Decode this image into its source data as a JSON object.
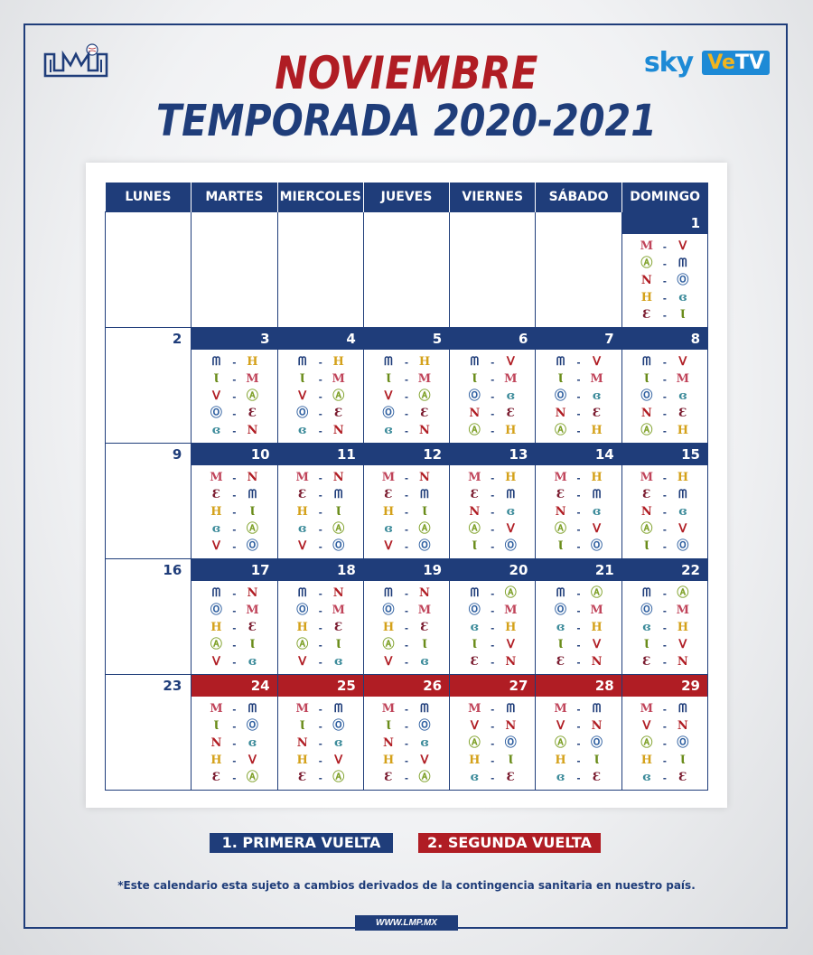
{
  "header": {
    "title_month": "NOVIEMBRE",
    "title_season": "TEMPORADA 2020-2021",
    "sponsor_sky": "sky",
    "sponsor_vetv_a": "Ve",
    "sponsor_vetv_b": "TV"
  },
  "weekdays": [
    "LUNES",
    "MARTES",
    "MIERCOLES",
    "JUEVES",
    "VIERNES",
    "SÁBADO",
    "DOMINGO"
  ],
  "teams": {
    "MOC": {
      "glyph": "Ⅿ",
      "color": "#c0445a"
    },
    "CUL": {
      "glyph": "ᗰ",
      "color": "#1f3d7a"
    },
    "MXL": {
      "glyph": "ᐯ",
      "color": "#b01d24"
    },
    "JAL": {
      "glyph": "∖",
      "color": "#4a8c2a"
    },
    "OBR": {
      "glyph": "Ⓞ",
      "color": "#2e5fa0"
    },
    "NAV": {
      "glyph": "N",
      "color": "#b01d24"
    },
    "HER": {
      "glyph": "H",
      "color": "#d4a11a"
    },
    "MAZ": {
      "glyph": "Ɛ",
      "color": "#7a1a2e"
    },
    "MON": {
      "glyph": "Ɩ",
      "color": "#6a8c1a"
    },
    "GUA": {
      "glyph": "ɞ",
      "color": "#3c8b9a"
    },
    "AGU": {
      "glyph": "Ⓐ",
      "color": "#7fa12a"
    }
  },
  "legend": {
    "first": "1. PRIMERA VUELTA",
    "second": "2. SEGUNDA VUELTA"
  },
  "note": "*Este calendario esta sujeto a cambios derivados de la contingencia sanitaria en nuestro país.",
  "url": "WWW.LMP.MX",
  "weeks": [
    [
      null,
      null,
      null,
      null,
      null,
      null,
      {
        "day": "1",
        "red": false,
        "games": [
          [
            "MOC",
            "MXL"
          ],
          [
            "AGU",
            "CUL"
          ],
          [
            "NAV",
            "OBR"
          ],
          [
            "HER",
            "GUA"
          ],
          [
            "MAZ",
            "MON"
          ]
        ]
      }
    ],
    [
      {
        "day": "2",
        "monday": true
      },
      {
        "day": "3",
        "red": false,
        "games": [
          [
            "CUL",
            "HER"
          ],
          [
            "MON",
            "MOC"
          ],
          [
            "MXL",
            "AGU"
          ],
          [
            "OBR",
            "MAZ"
          ],
          [
            "GUA",
            "NAV"
          ]
        ]
      },
      {
        "day": "4",
        "red": false,
        "games": [
          [
            "CUL",
            "HER"
          ],
          [
            "MON",
            "MOC"
          ],
          [
            "MXL",
            "AGU"
          ],
          [
            "OBR",
            "MAZ"
          ],
          [
            "GUA",
            "NAV"
          ]
        ]
      },
      {
        "day": "5",
        "red": false,
        "games": [
          [
            "CUL",
            "HER"
          ],
          [
            "MON",
            "MOC"
          ],
          [
            "MXL",
            "AGU"
          ],
          [
            "OBR",
            "MAZ"
          ],
          [
            "GUA",
            "NAV"
          ]
        ]
      },
      {
        "day": "6",
        "red": false,
        "games": [
          [
            "CUL",
            "MXL"
          ],
          [
            "MON",
            "MOC"
          ],
          [
            "OBR",
            "GUA"
          ],
          [
            "NAV",
            "MAZ"
          ],
          [
            "AGU",
            "HER"
          ]
        ]
      },
      {
        "day": "7",
        "red": false,
        "games": [
          [
            "CUL",
            "MXL"
          ],
          [
            "MON",
            "MOC"
          ],
          [
            "OBR",
            "GUA"
          ],
          [
            "NAV",
            "MAZ"
          ],
          [
            "AGU",
            "HER"
          ]
        ]
      },
      {
        "day": "8",
        "red": false,
        "games": [
          [
            "CUL",
            "MXL"
          ],
          [
            "MON",
            "MOC"
          ],
          [
            "OBR",
            "GUA"
          ],
          [
            "NAV",
            "MAZ"
          ],
          [
            "AGU",
            "HER"
          ]
        ]
      }
    ],
    [
      {
        "day": "9",
        "monday": true
      },
      {
        "day": "10",
        "red": false,
        "games": [
          [
            "MOC",
            "NAV"
          ],
          [
            "MAZ",
            "CUL"
          ],
          [
            "HER",
            "MON"
          ],
          [
            "GUA",
            "AGU"
          ],
          [
            "MXL",
            "OBR"
          ]
        ]
      },
      {
        "day": "11",
        "red": false,
        "games": [
          [
            "MOC",
            "NAV"
          ],
          [
            "MAZ",
            "CUL"
          ],
          [
            "HER",
            "MON"
          ],
          [
            "GUA",
            "AGU"
          ],
          [
            "MXL",
            "OBR"
          ]
        ]
      },
      {
        "day": "12",
        "red": false,
        "games": [
          [
            "MOC",
            "NAV"
          ],
          [
            "MAZ",
            "CUL"
          ],
          [
            "HER",
            "MON"
          ],
          [
            "GUA",
            "AGU"
          ],
          [
            "MXL",
            "OBR"
          ]
        ]
      },
      {
        "day": "13",
        "red": false,
        "games": [
          [
            "MOC",
            "HER"
          ],
          [
            "MAZ",
            "CUL"
          ],
          [
            "NAV",
            "GUA"
          ],
          [
            "AGU",
            "MXL"
          ],
          [
            "MON",
            "OBR"
          ]
        ]
      },
      {
        "day": "14",
        "red": false,
        "games": [
          [
            "MOC",
            "HER"
          ],
          [
            "MAZ",
            "CUL"
          ],
          [
            "NAV",
            "GUA"
          ],
          [
            "AGU",
            "MXL"
          ],
          [
            "MON",
            "OBR"
          ]
        ]
      },
      {
        "day": "15",
        "red": false,
        "games": [
          [
            "MOC",
            "HER"
          ],
          [
            "MAZ",
            "CUL"
          ],
          [
            "NAV",
            "GUA"
          ],
          [
            "AGU",
            "MXL"
          ],
          [
            "MON",
            "OBR"
          ]
        ]
      }
    ],
    [
      {
        "day": "16",
        "monday": true
      },
      {
        "day": "17",
        "red": false,
        "games": [
          [
            "CUL",
            "NAV"
          ],
          [
            "OBR",
            "MOC"
          ],
          [
            "HER",
            "MAZ"
          ],
          [
            "AGU",
            "MON"
          ],
          [
            "MXL",
            "GUA"
          ]
        ]
      },
      {
        "day": "18",
        "red": false,
        "games": [
          [
            "CUL",
            "NAV"
          ],
          [
            "OBR",
            "MOC"
          ],
          [
            "HER",
            "MAZ"
          ],
          [
            "AGU",
            "MON"
          ],
          [
            "MXL",
            "GUA"
          ]
        ]
      },
      {
        "day": "19",
        "red": false,
        "games": [
          [
            "CUL",
            "NAV"
          ],
          [
            "OBR",
            "MOC"
          ],
          [
            "HER",
            "MAZ"
          ],
          [
            "AGU",
            "MON"
          ],
          [
            "MXL",
            "GUA"
          ]
        ]
      },
      {
        "day": "20",
        "red": false,
        "games": [
          [
            "CUL",
            "AGU"
          ],
          [
            "OBR",
            "MOC"
          ],
          [
            "GUA",
            "HER"
          ],
          [
            "MON",
            "MXL"
          ],
          [
            "MAZ",
            "NAV"
          ]
        ]
      },
      {
        "day": "21",
        "red": false,
        "games": [
          [
            "CUL",
            "AGU"
          ],
          [
            "OBR",
            "MOC"
          ],
          [
            "GUA",
            "HER"
          ],
          [
            "MON",
            "MXL"
          ],
          [
            "MAZ",
            "NAV"
          ]
        ]
      },
      {
        "day": "22",
        "red": false,
        "games": [
          [
            "CUL",
            "AGU"
          ],
          [
            "OBR",
            "MOC"
          ],
          [
            "GUA",
            "HER"
          ],
          [
            "MON",
            "MXL"
          ],
          [
            "MAZ",
            "NAV"
          ]
        ]
      }
    ],
    [
      {
        "day": "23",
        "monday": true
      },
      {
        "day": "24",
        "red": true,
        "games": [
          [
            "MOC",
            "CUL"
          ],
          [
            "MON",
            "OBR"
          ],
          [
            "NAV",
            "GUA"
          ],
          [
            "HER",
            "MXL"
          ],
          [
            "MAZ",
            "AGU"
          ]
        ]
      },
      {
        "day": "25",
        "red": true,
        "games": [
          [
            "MOC",
            "CUL"
          ],
          [
            "MON",
            "OBR"
          ],
          [
            "NAV",
            "GUA"
          ],
          [
            "HER",
            "MXL"
          ],
          [
            "MAZ",
            "AGU"
          ]
        ]
      },
      {
        "day": "26",
        "red": true,
        "games": [
          [
            "MOC",
            "CUL"
          ],
          [
            "MON",
            "OBR"
          ],
          [
            "NAV",
            "GUA"
          ],
          [
            "HER",
            "MXL"
          ],
          [
            "MAZ",
            "AGU"
          ]
        ]
      },
      {
        "day": "27",
        "red": true,
        "games": [
          [
            "MOC",
            "CUL"
          ],
          [
            "MXL",
            "NAV"
          ],
          [
            "AGU",
            "OBR"
          ],
          [
            "HER",
            "MON"
          ],
          [
            "GUA",
            "MAZ"
          ]
        ]
      },
      {
        "day": "28",
        "red": true,
        "games": [
          [
            "MOC",
            "CUL"
          ],
          [
            "MXL",
            "NAV"
          ],
          [
            "AGU",
            "OBR"
          ],
          [
            "HER",
            "MON"
          ],
          [
            "GUA",
            "MAZ"
          ]
        ]
      },
      {
        "day": "29",
        "red": true,
        "games": [
          [
            "MOC",
            "CUL"
          ],
          [
            "MXL",
            "NAV"
          ],
          [
            "AGU",
            "OBR"
          ],
          [
            "HER",
            "MON"
          ],
          [
            "GUA",
            "MAZ"
          ]
        ]
      }
    ]
  ]
}
